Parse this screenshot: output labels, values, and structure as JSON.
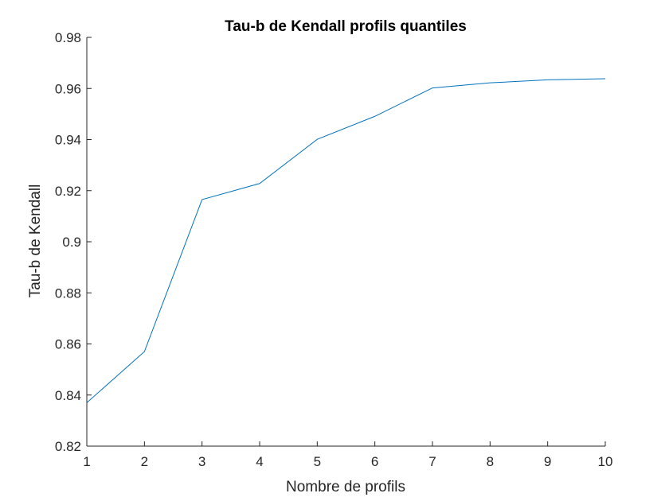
{
  "chart_data": {
    "type": "line",
    "title": "Tau-b de Kendall profils quantiles",
    "xlabel": "Nombre de profils",
    "ylabel": "Tau-b de Kendall",
    "xlim": [
      1,
      10
    ],
    "ylim": [
      0.82,
      0.98
    ],
    "x_ticks": [
      1,
      2,
      3,
      4,
      5,
      6,
      7,
      8,
      9,
      10
    ],
    "x_tick_labels": [
      "1",
      "2",
      "3",
      "4",
      "5",
      "6",
      "7",
      "8",
      "9",
      "10"
    ],
    "y_ticks": [
      0.82,
      0.84,
      0.86,
      0.88,
      0.9,
      0.92,
      0.94,
      0.96,
      0.98
    ],
    "y_tick_labels": [
      "0.82",
      "0.84",
      "0.86",
      "0.88",
      "0.9",
      "0.92",
      "0.94",
      "0.96",
      "0.98"
    ],
    "grid": false,
    "legend": false,
    "series": [
      {
        "color": "#0072bd",
        "x": [
          1,
          2,
          3,
          4,
          5,
          6,
          7,
          8,
          9,
          10
        ],
        "y": [
          0.837,
          0.857,
          0.9165,
          0.9228,
          0.9401,
          0.9491,
          0.9602,
          0.9622,
          0.9634,
          0.9638
        ]
      }
    ]
  }
}
